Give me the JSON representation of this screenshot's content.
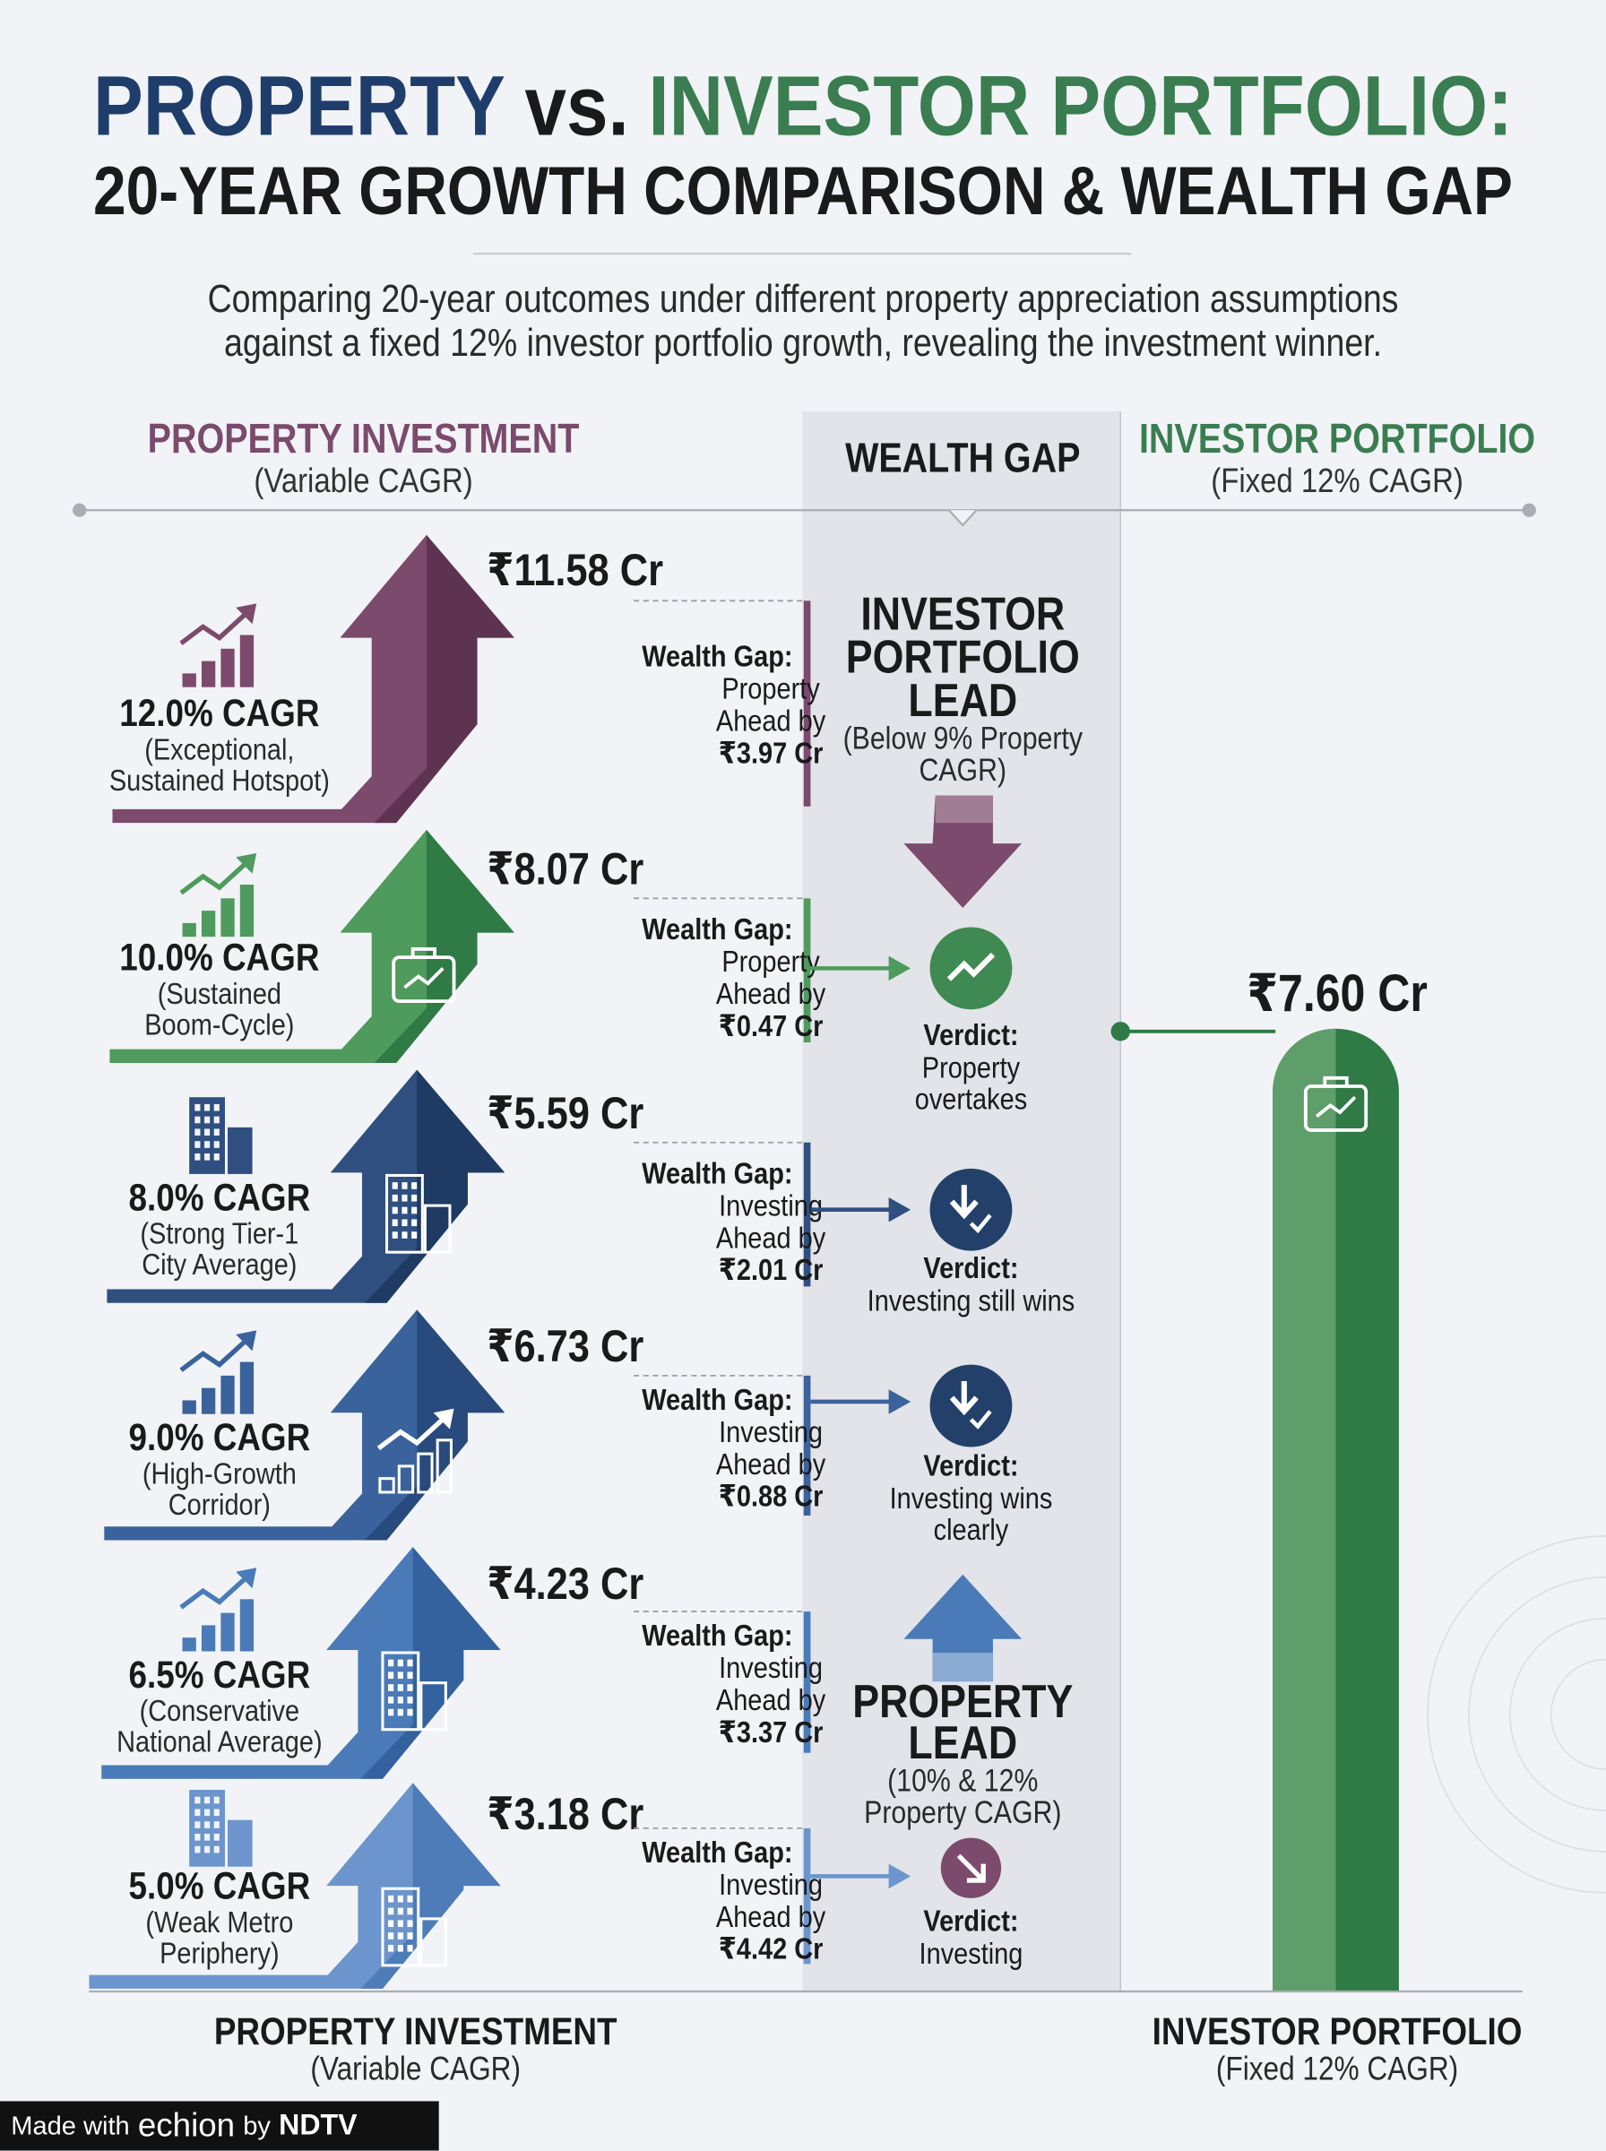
{
  "title": {
    "part1": "PROPERTY",
    "part2": "vs.",
    "part3": "INVESTOR PORTFOLIO:",
    "line2": "20-YEAR GROWTH COMPARISON & WEALTH GAP"
  },
  "subtitle": [
    "Comparing 20-year outcomes under different property appreciation assumptions",
    "against a fixed 12% investor portfolio growth, revealing the investment winner."
  ],
  "columns": {
    "property": {
      "title": "PROPERTY INVESTMENT",
      "note": "(Variable CAGR)"
    },
    "gap": {
      "title": "WEALTH GAP"
    },
    "investor": {
      "title": "INVESTOR PORTFOLIO",
      "note": "(Fixed 12% CAGR)"
    }
  },
  "rows": [
    {
      "cagr": "12.0% CAGR",
      "desc": [
        "(Exceptional,",
        "Sustained Hotspot)"
      ],
      "value": "₹11.58 Cr",
      "gap_label": "Wealth Gap:",
      "gap": [
        "Property",
        "Ahead by",
        "₹3.97 Cr"
      ]
    },
    {
      "cagr": "10.0% CAGR",
      "desc": [
        "(Sustained",
        "Boom-Cycle)"
      ],
      "value": "₹8.07 Cr",
      "gap_label": "Wealth Gap:",
      "gap": [
        "Property",
        "Ahead by",
        "₹0.47 Cr"
      ]
    },
    {
      "cagr": "8.0% CAGR",
      "desc": [
        "(Strong Tier-1",
        "City Average)"
      ],
      "value": "₹5.59 Cr",
      "gap_label": "Wealth Gap:",
      "gap": [
        "Investing",
        "Ahead by",
        "₹2.01 Cr"
      ]
    },
    {
      "cagr": "9.0% CAGR",
      "desc": [
        "(High-Growth",
        "Corridor)"
      ],
      "value": "₹6.73 Cr",
      "gap_label": "Wealth Gap:",
      "gap": [
        "Investing",
        "Ahead by",
        "₹0.88 Cr"
      ]
    },
    {
      "cagr": "6.5% CAGR",
      "desc": [
        "(Conservative",
        "National Average)"
      ],
      "value": "₹4.23 Cr",
      "gap_label": "Wealth Gap:",
      "gap": [
        "Investing",
        "Ahead by",
        "₹3.37 Cr"
      ]
    },
    {
      "cagr": "5.0% CAGR",
      "desc": [
        "(Weak Metro",
        "Periphery)"
      ],
      "value": "₹3.18 Cr",
      "gap_label": "Wealth Gap:",
      "gap": [
        "Investing",
        "Ahead by",
        "₹4.42 Cr"
      ]
    }
  ],
  "investor_lead": {
    "title": [
      "INVESTOR",
      "PORTFOLIO",
      "LEAD"
    ],
    "note": [
      "(Below 9% Property",
      "CAGR)"
    ]
  },
  "property_lead": {
    "title": [
      "PROPERTY",
      "LEAD"
    ],
    "note": [
      "(10% & 12%",
      "Property CAGR)"
    ]
  },
  "verdicts": [
    {
      "label": "Verdict:",
      "text": [
        "Property",
        "overtakes"
      ]
    },
    {
      "label": "Verdict:",
      "text": [
        "Investing still wins"
      ]
    },
    {
      "label": "Verdict:",
      "text": [
        "Investing wins",
        "clearly"
      ]
    },
    {
      "label": "Verdict:",
      "text": [
        "Investing"
      ]
    }
  ],
  "investor_value": "₹7.60 Cr",
  "footer": {
    "property": {
      "title": "PROPERTY INVESTMENT",
      "note": "(Variable CAGR)"
    },
    "investor": {
      "title": "INVESTOR PORTFOLIO",
      "note": "(Fixed 12% CAGR)"
    }
  },
  "credit": {
    "made": "Made with",
    "brand": "echion",
    "by": "by",
    "owner": "NDTV"
  }
}
